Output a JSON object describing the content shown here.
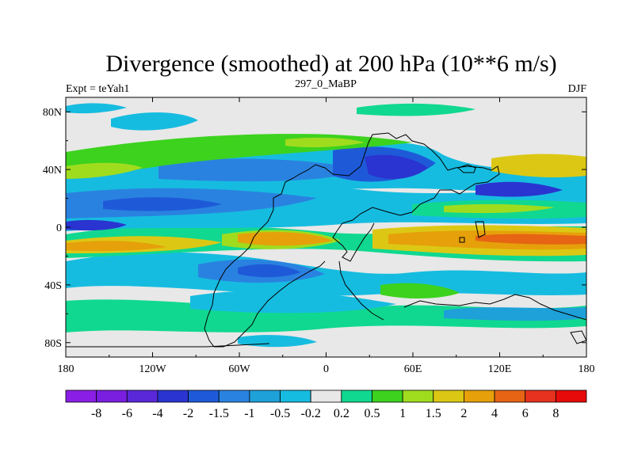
{
  "chart_data": {
    "type": "heatmap",
    "title": "Divergence (smoothed) at 200 hPa (10**6 m/s)",
    "left_label": "Expt = teYah1",
    "center_label": "297_0_MaBP",
    "right_label": "DJF",
    "x_range": [
      -180,
      180
    ],
    "y_range": [
      -90,
      90
    ],
    "x_ticks": [
      {
        "value": -180,
        "label": "180"
      },
      {
        "value": -120,
        "label": "120W"
      },
      {
        "value": -60,
        "label": "60W"
      },
      {
        "value": 0,
        "label": "0"
      },
      {
        "value": 60,
        "label": "60E"
      },
      {
        "value": 120,
        "label": "120E"
      },
      {
        "value": 180,
        "label": "180"
      }
    ],
    "y_ticks": [
      {
        "value": 80,
        "label": "80N"
      },
      {
        "value": 40,
        "label": "40N"
      },
      {
        "value": 0,
        "label": "0"
      },
      {
        "value": -40,
        "label": "40S"
      },
      {
        "value": -80,
        "label": "80S"
      }
    ],
    "colorbar": {
      "levels": [
        "-8",
        "-6",
        "-4",
        "-2",
        "-1.5",
        "-1",
        "-0.5",
        "-0.2",
        "0.2",
        "0.5",
        "1",
        "1.5",
        "2",
        "4",
        "6",
        "8"
      ],
      "colors": [
        "#8a1ee6",
        "#7a1ee0",
        "#5a28d8",
        "#2a34d0",
        "#1e5ad8",
        "#2a82e0",
        "#1ea0d8",
        "#16bce0",
        "#e8e8e8",
        "#10d890",
        "#3cd21e",
        "#a0dc1e",
        "#dcc814",
        "#e6a00a",
        "#e66414",
        "#e6321e",
        "#e60a0a"
      ]
    }
  }
}
